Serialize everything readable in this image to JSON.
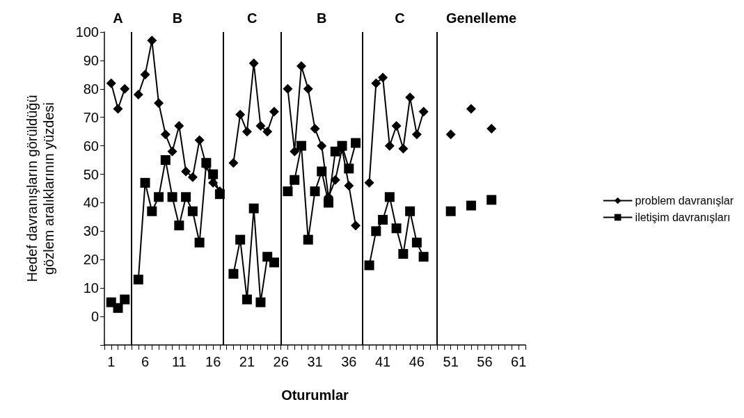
{
  "chart_data": {
    "type": "line",
    "xlabel": "Oturumlar",
    "ylabel": "Hedef davranışların görüldüğü\ngözlem aralıklarının yüzdesi",
    "x": [
      1,
      2,
      3,
      4,
      5,
      6,
      7,
      8,
      9,
      10,
      11,
      12,
      13,
      14,
      15,
      16,
      17,
      18,
      19,
      20,
      21,
      22,
      23,
      24,
      25,
      26,
      27,
      28,
      29,
      30,
      31,
      32,
      33,
      34,
      35,
      36,
      37,
      38,
      39,
      40,
      41,
      42,
      43,
      44,
      45,
      46,
      47,
      48,
      49,
      50,
      51,
      52,
      53,
      54,
      55,
      56,
      57
    ],
    "series": [
      {
        "name": "problem davranışlar",
        "color": "#000000",
        "marker": "diamond",
        "values": [
          82,
          73,
          80,
          null,
          78,
          85,
          97,
          75,
          64,
          58,
          67,
          51,
          49,
          62,
          53,
          47,
          44,
          null,
          54,
          71,
          65,
          89,
          67,
          65,
          72,
          null,
          80,
          58,
          88,
          80,
          66,
          60,
          42,
          48,
          59,
          46,
          32,
          null,
          47,
          82,
          84,
          60,
          67,
          59,
          77,
          64,
          72,
          null,
          null,
          null,
          64,
          null,
          null,
          73,
          null,
          null,
          66
        ]
      },
      {
        "name": "iletişim davranışları",
        "color": "#000000",
        "marker": "square",
        "values": [
          5,
          3,
          6,
          null,
          13,
          47,
          37,
          42,
          55,
          42,
          32,
          42,
          37,
          26,
          54,
          50,
          43,
          null,
          15,
          27,
          6,
          38,
          5,
          21,
          19,
          null,
          44,
          48,
          60,
          27,
          44,
          51,
          40,
          58,
          60,
          52,
          61,
          null,
          18,
          30,
          34,
          42,
          31,
          22,
          37,
          26,
          21,
          null,
          null,
          null,
          37,
          null,
          null,
          39,
          null,
          null,
          41
        ]
      }
    ],
    "xlim": [
      0,
      62
    ],
    "xticks": [
      {
        "value": 0,
        "label": null
      },
      1,
      {
        "value": 2,
        "label": null
      },
      {
        "value": 3,
        "label": null
      },
      {
        "value": 4,
        "label": null
      },
      {
        "value": 5,
        "label": null
      },
      6,
      {
        "value": 7,
        "label": null
      },
      {
        "value": 8,
        "label": null
      },
      {
        "value": 9,
        "label": null
      },
      {
        "value": 10,
        "label": null
      },
      11,
      {
        "value": 12,
        "label": null
      },
      {
        "value": 13,
        "label": null
      },
      {
        "value": 14,
        "label": null
      },
      {
        "value": 15,
        "label": null
      },
      16,
      {
        "value": 17,
        "label": null
      },
      {
        "value": 18,
        "label": null
      },
      {
        "value": 19,
        "label": null
      },
      {
        "value": 20,
        "label": null
      },
      21,
      {
        "value": 22,
        "label": null
      },
      {
        "value": 23,
        "label": null
      },
      {
        "value": 24,
        "label": null
      },
      {
        "value": 25,
        "label": null
      },
      26,
      {
        "value": 27,
        "label": null
      },
      {
        "value": 28,
        "label": null
      },
      {
        "value": 29,
        "label": null
      },
      {
        "value": 30,
        "label": null
      },
      31,
      {
        "value": 32,
        "label": null
      },
      {
        "value": 33,
        "label": null
      },
      {
        "value": 34,
        "label": null
      },
      {
        "value": 35,
        "label": null
      },
      36,
      {
        "value": 37,
        "label": null
      },
      {
        "value": 38,
        "label": null
      },
      {
        "value": 39,
        "label": null
      },
      {
        "value": 40,
        "label": null
      },
      41,
      {
        "value": 42,
        "label": null
      },
      {
        "value": 43,
        "label": null
      },
      {
        "value": 44,
        "label": null
      },
      {
        "value": 45,
        "label": null
      },
      46,
      {
        "value": 47,
        "label": null
      },
      {
        "value": 48,
        "label": null
      },
      {
        "value": 49,
        "label": null
      },
      {
        "value": 50,
        "label": null
      },
      51,
      {
        "value": 52,
        "label": null
      },
      {
        "value": 53,
        "label": null
      },
      {
        "value": 54,
        "label": null
      },
      {
        "value": 55,
        "label": null
      },
      56,
      {
        "value": 57,
        "label": null
      },
      {
        "value": 58,
        "label": null
      },
      {
        "value": 59,
        "label": null
      },
      {
        "value": 60,
        "label": null
      },
      61,
      {
        "value": 62,
        "label": null
      }
    ],
    "ylim": [
      -10,
      100
    ],
    "yticks": [
      {
        "value": -10,
        "label": null
      },
      0,
      10,
      20,
      30,
      40,
      50,
      60,
      70,
      80,
      90,
      100
    ],
    "ref_lines": [
      {
        "axis": "x",
        "value": 4,
        "color": "#000000"
      },
      {
        "axis": "x",
        "value": 17.5,
        "color": "#000000"
      },
      {
        "axis": "x",
        "value": 26,
        "color": "#000000"
      },
      {
        "axis": "x",
        "value": 38,
        "color": "#000000"
      },
      {
        "axis": "x",
        "value": 49,
        "color": "#000000"
      }
    ],
    "annotations": [
      "A",
      "B",
      "C",
      "B",
      "C",
      "Genelleme"
    ],
    "legend": "right",
    "grid": false,
    "line_style": "solid"
  }
}
